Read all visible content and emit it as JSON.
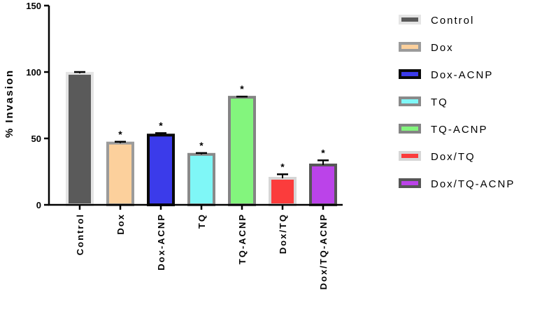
{
  "chart_data": {
    "type": "bar",
    "ylabel": "% Invasion",
    "xlabel": "",
    "ylim": [
      0,
      150
    ],
    "yticks": [
      0,
      50,
      100,
      150
    ],
    "legend_position": "right",
    "categories": [
      "Control",
      "Dox",
      "Dox-ACNP",
      "TQ",
      "TQ-ACNP",
      "Dox/TQ",
      "Dox/TQ-ACNP"
    ],
    "values": [
      99,
      46.5,
      52.5,
      38,
      81,
      20,
      30
    ],
    "errors": [
      1,
      1,
      1.5,
      1,
      0.5,
      3,
      3.5
    ],
    "significance": [
      "",
      "*",
      "*",
      "*",
      "*",
      "*",
      "*"
    ],
    "fill_colors": [
      "#5a5a5a",
      "#fcd09c",
      "#3b3bea",
      "#7ff7f7",
      "#83f57d",
      "#fb3c3c",
      "#bb43e9"
    ],
    "border_colors": [
      "#e4e4e4",
      "#9b9b9b",
      "#0a0a0a",
      "#8a8a8a",
      "#848484",
      "#d6d6d6",
      "#565656"
    ]
  }
}
